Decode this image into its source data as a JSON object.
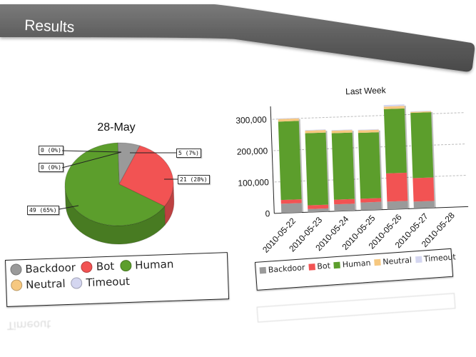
{
  "header": {
    "title": "Results"
  },
  "colors": {
    "backdoor": "#9a9a9a",
    "bot": "#f25353",
    "human": "#5c9e2c",
    "neutral": "#f6c880",
    "timeout": "#d4d6f0",
    "header_bar": "#5f5f5f"
  },
  "chart_data": [
    {
      "type": "pie",
      "title": "28-May",
      "slices": [
        {
          "name": "Backdoor",
          "value": 5,
          "label": "5 (7%)"
        },
        {
          "name": "Bot",
          "value": 21,
          "label": "21 (28%)"
        },
        {
          "name": "Human",
          "value": 49,
          "label": "49 (65%)"
        },
        {
          "name": "Neutral",
          "value": 0,
          "label": "0 (0%)"
        },
        {
          "name": "Timeout",
          "value": 0,
          "label": "0 (0%)"
        }
      ],
      "legend": [
        "Backdoor",
        "Bot",
        "Human",
        "Neutral",
        "Timeout"
      ],
      "legend_position": "bottom"
    },
    {
      "type": "bar",
      "stacked": true,
      "title": "Last Week",
      "categories": [
        "2010-05-22",
        "2010-05-23",
        "2010-05-24",
        "2010-05-25",
        "2010-05-26",
        "2010-05-27",
        "2010-05-28"
      ],
      "series": [
        {
          "name": "Backdoor",
          "values": [
            30000,
            10000,
            22000,
            25000,
            25000,
            22000,
            0
          ]
        },
        {
          "name": "Bot",
          "values": [
            12000,
            12000,
            15000,
            12000,
            90000,
            75000,
            0
          ]
        },
        {
          "name": "Human",
          "values": [
            250000,
            230000,
            212000,
            210000,
            205000,
            208000,
            0
          ]
        },
        {
          "name": "Neutral",
          "values": [
            8000,
            8000,
            8000,
            8000,
            8000,
            3000,
            0
          ]
        },
        {
          "name": "Timeout",
          "values": [
            2000,
            2000,
            2000,
            2000,
            5000,
            2000,
            0
          ]
        }
      ],
      "yticks": [
        "0",
        "100,000",
        "200,000",
        "300,000"
      ],
      "ylim": [
        0,
        330000
      ],
      "grid": true,
      "legend_position": "bottom"
    }
  ]
}
